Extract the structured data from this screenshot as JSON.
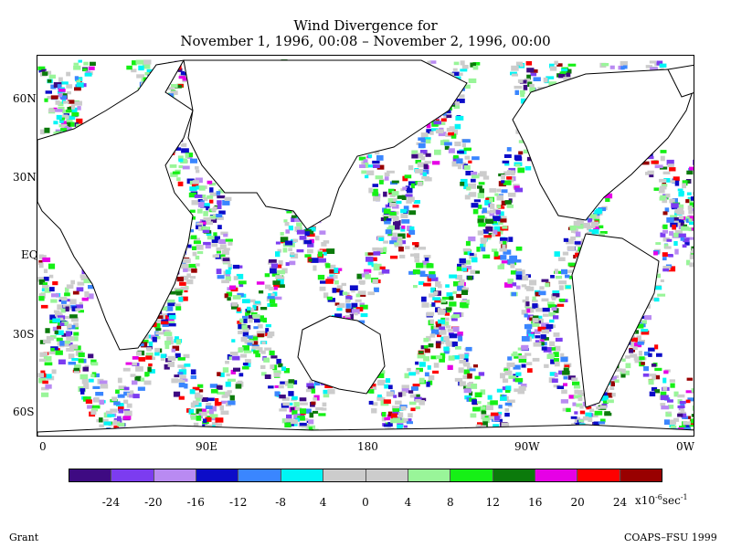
{
  "title": {
    "line1": "Wind Divergence for",
    "line2": "November 1, 1996, 00:08 – November 2, 1996, 00:00"
  },
  "map": {
    "lat_labels": [
      "60N",
      "30N",
      "EQ",
      "30S",
      "60S"
    ],
    "lon_labels": [
      "0",
      "90E",
      "180",
      "90W",
      "0W"
    ]
  },
  "colorbar": {
    "colors": [
      "#3e0a82",
      "#7c3cf0",
      "#b98af2",
      "#0c0cc8",
      "#3a86ff",
      "#00f5f5",
      "#cccccc",
      "#cccccc",
      "#99f599",
      "#16f016",
      "#0b7a0b",
      "#e600e6",
      "#ff0000",
      "#990000"
    ],
    "labels": [
      "-24",
      "-20",
      "-16",
      "-12",
      "-8",
      "4",
      "0",
      "4",
      "8",
      "12",
      "16",
      "20",
      "24"
    ],
    "units_prefix": "x10",
    "units_exponent": "-6",
    "units_suffix": "sec",
    "units_suffix_exponent": "-1"
  },
  "footer": {
    "left": "Grant",
    "right": "COAPS–FSU 1999"
  }
}
